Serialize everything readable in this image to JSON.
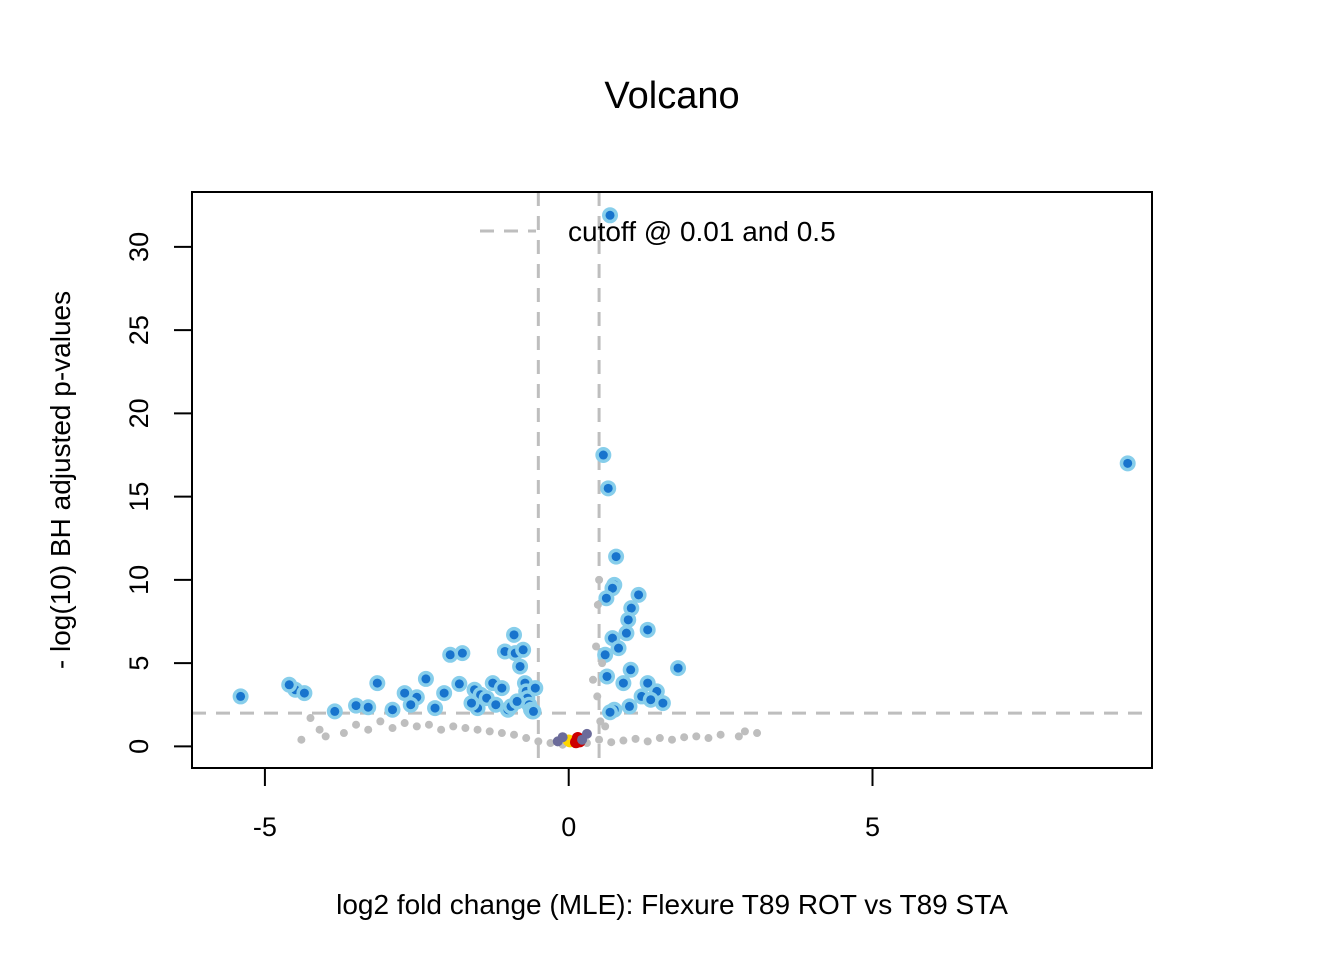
{
  "chart_data": {
    "type": "scatter",
    "title": "Volcano",
    "xlabel": "log2 fold change (MLE): Flexure T89 ROT vs T89 STA",
    "ylabel": "- log(10) BH adjusted p-values",
    "xlim": [
      -6.2,
      9.6
    ],
    "ylim": [
      -1.3,
      33.3
    ],
    "x_ticks": [
      -5,
      0,
      5
    ],
    "y_ticks": [
      0,
      5,
      10,
      15,
      20,
      25,
      30
    ],
    "grid": false,
    "cutoffs": {
      "padj": 0.01,
      "neg_log10_padj": 2,
      "log2fc": [
        -0.5,
        0.5
      ]
    },
    "legend": {
      "position": "top",
      "entries": [
        {
          "label": "cutoff @ 0.01 and 0.5",
          "style": "dashed-line"
        }
      ]
    },
    "colors": {
      "nonsignificant": "#bebebe",
      "significant_fill": "#1874cd",
      "significant_ring": "#87ceeb",
      "cutoff_line": "#bebebe",
      "highlight_yellow": "#ffd700",
      "highlight_red": "#cd0000",
      "highlight_purple": "#6b6b9a"
    },
    "series": [
      {
        "name": "",
        "role": "significant",
        "x": [
          9.2,
          0.68,
          0.57,
          0.65,
          0.78,
          0.75,
          0.72,
          1.15,
          1.03,
          0.98,
          0.62,
          1.3,
          0.95,
          0.72,
          0.82,
          0.6,
          1.02,
          0.63,
          0.9,
          1.8,
          1.3,
          1.45,
          1.2,
          1.35,
          1.55,
          1.0,
          0.75,
          0.68,
          -5.4,
          -4.5,
          -4.6,
          -4.35,
          -3.85,
          -3.5,
          -3.15,
          -2.7,
          -2.5,
          -2.6,
          -2.35,
          -2.05,
          -1.95,
          -1.75,
          -1.8,
          -1.55,
          -1.45,
          -1.35,
          -1.25,
          -1.2,
          -1.1,
          -1.05,
          -0.9,
          -0.88,
          -0.8,
          -0.75,
          -0.72,
          -0.7,
          -0.68,
          -0.65,
          -0.62,
          -0.6,
          -1.5,
          -1.6,
          -1.0,
          -0.95,
          -0.85,
          -2.2,
          -2.9,
          -3.3,
          -0.55,
          -0.58
        ],
        "y": [
          17.0,
          31.9,
          17.5,
          15.5,
          11.4,
          9.7,
          9.5,
          9.1,
          8.3,
          7.6,
          8.9,
          7.0,
          6.8,
          6.5,
          5.9,
          5.5,
          4.6,
          4.2,
          3.8,
          4.7,
          3.8,
          3.3,
          3.0,
          2.8,
          2.6,
          2.4,
          2.2,
          2.05,
          3.0,
          3.4,
          3.7,
          3.2,
          2.1,
          2.45,
          3.8,
          3.2,
          2.95,
          2.5,
          4.05,
          3.2,
          5.5,
          5.6,
          3.75,
          3.4,
          3.1,
          2.9,
          3.8,
          2.5,
          3.5,
          5.7,
          6.7,
          5.6,
          4.8,
          5.8,
          3.8,
          3.3,
          2.9,
          2.5,
          2.2,
          2.1,
          2.3,
          2.6,
          2.2,
          2.4,
          2.7,
          2.3,
          2.2,
          2.35,
          3.5,
          2.1
        ]
      },
      {
        "name": "",
        "role": "nonsignificant",
        "x": [
          3.1,
          2.9,
          2.8,
          2.5,
          2.3,
          2.1,
          1.9,
          1.7,
          1.5,
          1.3,
          1.1,
          0.9,
          0.7,
          0.5,
          0.3,
          0.1,
          -0.1,
          -0.3,
          -0.5,
          -0.7,
          -0.9,
          -1.1,
          -1.3,
          -1.5,
          -1.7,
          -1.9,
          -2.1,
          -2.3,
          -2.5,
          -2.7,
          -2.9,
          -3.1,
          -3.3,
          -3.5,
          -3.7,
          -4.0,
          -4.25,
          -4.4,
          -4.1,
          0.5,
          0.48,
          0.45,
          0.4,
          0.47,
          0.52,
          0.6,
          0.55
        ],
        "y": [
          0.8,
          0.9,
          0.6,
          0.7,
          0.5,
          0.6,
          0.55,
          0.4,
          0.5,
          0.3,
          0.45,
          0.35,
          0.25,
          0.4,
          0.2,
          0.15,
          0.1,
          0.2,
          0.3,
          0.5,
          0.7,
          0.8,
          0.9,
          1.0,
          1.1,
          1.2,
          1.0,
          1.3,
          1.2,
          1.4,
          1.1,
          1.5,
          1.0,
          1.3,
          0.8,
          0.6,
          1.7,
          0.4,
          1.0,
          10.0,
          8.5,
          6.0,
          4.0,
          3.0,
          1.5,
          1.2,
          5.0
        ]
      },
      {
        "name": "",
        "role": "highlight-yellow",
        "x": [
          0.0,
          0.02
        ],
        "y": [
          0.35,
          0.3
        ]
      },
      {
        "name": "",
        "role": "highlight-red",
        "x": [
          0.12,
          0.15,
          0.18
        ],
        "y": [
          0.25,
          0.5,
          0.3
        ]
      },
      {
        "name": "",
        "role": "highlight-purple",
        "x": [
          -0.18,
          -0.1,
          0.22,
          0.3
        ],
        "y": [
          0.3,
          0.55,
          0.4,
          0.75
        ]
      }
    ]
  }
}
